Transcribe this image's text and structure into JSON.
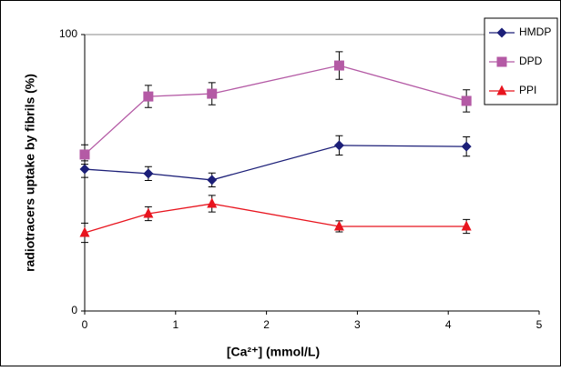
{
  "chart_data": {
    "type": "line",
    "xlabel": "[Ca²⁺] (mmol/L)",
    "ylabel": "radiotracers uptake by fibrils (%)",
    "x": [
      0,
      0.7,
      1.4,
      2.8,
      4.2
    ],
    "xlim": [
      0,
      5
    ],
    "xticks": [
      0,
      1,
      2,
      3,
      4,
      5
    ],
    "ylim": [
      0,
      100
    ],
    "yticks": [
      0,
      100
    ],
    "grid": true,
    "legend": "top-right",
    "series": [
      {
        "name": "HMDP",
        "color": "#1c1f78",
        "marker": "diamond",
        "values": [
          51.3,
          49.7,
          47.4,
          59.9,
          59.5
        ],
        "errors": [
          3,
          2.5,
          2.5,
          3.5,
          3.5
        ]
      },
      {
        "name": "DPD",
        "color": "#b45aa5",
        "marker": "square",
        "values": [
          56.6,
          77.6,
          78.6,
          88.8,
          76.0
        ],
        "errors": [
          3.5,
          4,
          4,
          5,
          4
        ]
      },
      {
        "name": "PPI",
        "color": "#e8141e",
        "marker": "triangle",
        "values": [
          28.3,
          35.2,
          38.8,
          30.6,
          30.6
        ],
        "errors": [
          3.5,
          2.5,
          3,
          2,
          2.5
        ]
      }
    ]
  }
}
